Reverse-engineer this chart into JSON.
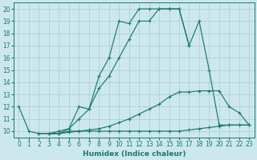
{
  "xlabel": "Humidex (Indice chaleur)",
  "xlim": [
    -0.5,
    23.5
  ],
  "ylim": [
    9.5,
    20.5
  ],
  "yticks": [
    10,
    11,
    12,
    13,
    14,
    15,
    16,
    17,
    18,
    19,
    20
  ],
  "xticks": [
    0,
    1,
    2,
    3,
    4,
    5,
    6,
    7,
    8,
    9,
    10,
    11,
    12,
    13,
    14,
    15,
    16,
    17,
    18,
    19,
    20,
    21,
    22,
    23
  ],
  "bg_color": "#cce8ed",
  "grid_color": "#aacccc",
  "line_color": "#1a7a6e",
  "curves": [
    {
      "x": [
        0,
        1,
        2,
        3,
        4,
        5,
        6,
        7,
        8,
        9,
        10,
        11,
        12,
        13,
        14,
        15,
        16,
        17,
        18,
        19,
        20,
        21,
        22,
        23
      ],
      "y": [
        12,
        10,
        9.8,
        9.8,
        9.8,
        10.2,
        12.0,
        11.8,
        14.5,
        16.0,
        19.0,
        18.8,
        20.0,
        20.0,
        20.0,
        20.0,
        20.0,
        17.0,
        19.0,
        15.0,
        10.5,
        10.5,
        10.5,
        10.5
      ]
    },
    {
      "x": [
        2,
        3,
        4,
        5,
        6,
        7,
        8,
        9,
        10,
        11,
        12,
        13,
        14,
        15,
        16,
        17
      ],
      "y": [
        9.8,
        9.8,
        10.0,
        10.2,
        11.0,
        11.8,
        13.5,
        14.5,
        16.0,
        17.5,
        19.0,
        19.0,
        20.0,
        20.0,
        20.0,
        17.0
      ]
    },
    {
      "x": [
        3,
        4,
        5,
        6,
        7,
        8,
        9,
        10,
        11,
        12,
        13,
        14,
        15,
        16,
        17,
        18,
        19,
        20,
        21,
        22,
        23
      ],
      "y": [
        9.8,
        9.8,
        10.0,
        10.0,
        10.1,
        10.2,
        10.4,
        10.7,
        11.0,
        11.4,
        11.8,
        12.2,
        12.8,
        13.2,
        13.2,
        13.3,
        13.3,
        13.3,
        12.0,
        11.5,
        10.5
      ]
    },
    {
      "x": [
        3,
        4,
        5,
        6,
        7,
        8,
        9,
        10,
        11,
        12,
        13,
        14,
        15,
        16,
        17,
        18,
        19,
        20,
        21,
        22,
        23
      ],
      "y": [
        9.8,
        9.8,
        9.9,
        10.0,
        10.0,
        10.0,
        10.0,
        10.0,
        10.0,
        10.0,
        10.0,
        10.0,
        10.0,
        10.0,
        10.1,
        10.2,
        10.3,
        10.4,
        10.5,
        10.5,
        10.5
      ]
    }
  ]
}
